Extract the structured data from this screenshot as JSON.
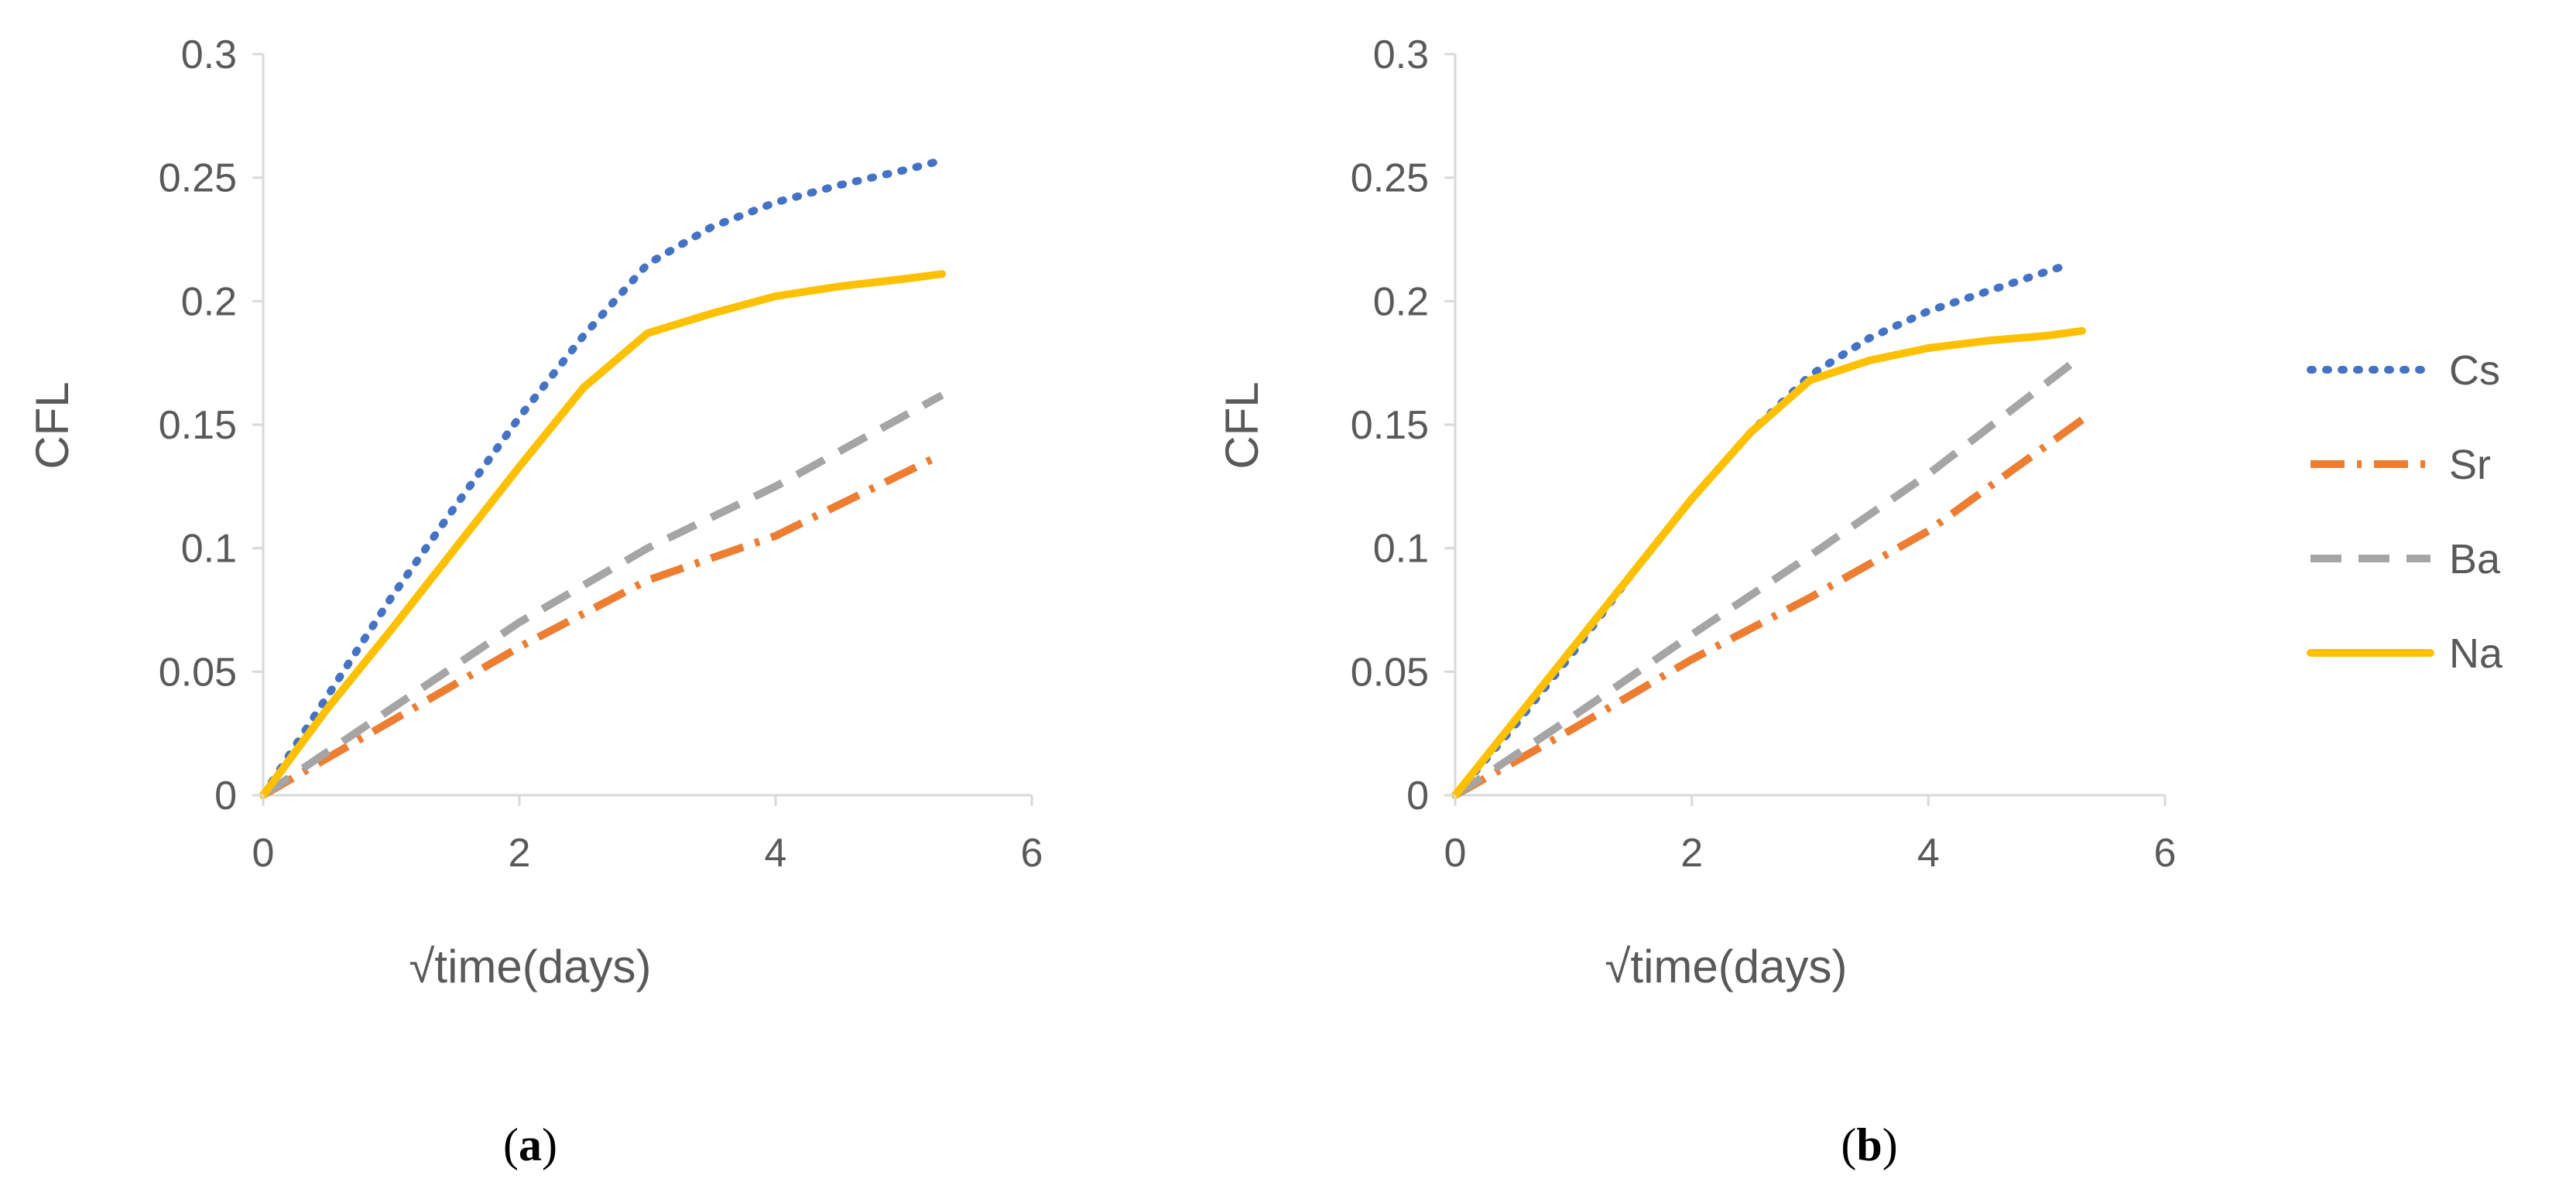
{
  "chart_data": [
    {
      "type": "line",
      "panel_label": "a",
      "xlabel": "√time(days)",
      "ylabel": "CFL",
      "xlim": [
        0,
        6
      ],
      "ylim": [
        0,
        0.3
      ],
      "xticks": [
        "0",
        "2",
        "4",
        "6"
      ],
      "yticks": [
        "0",
        "0.05",
        "0.1",
        "0.15",
        "0.2",
        "0.25",
        "0.3"
      ],
      "grid": false,
      "legend": "right",
      "series": [
        {
          "name": "Cs",
          "x": [
            0,
            0.5,
            1,
            1.5,
            2,
            2.5,
            3,
            3.5,
            4,
            4.5,
            5,
            5.3
          ],
          "y": [
            0,
            0.04,
            0.08,
            0.117,
            0.153,
            0.186,
            0.215,
            0.23,
            0.24,
            0.247,
            0.253,
            0.257
          ]
        },
        {
          "name": "Sr",
          "x": [
            0,
            1,
            2,
            3,
            4,
            5.3
          ],
          "y": [
            0,
            0.03,
            0.06,
            0.087,
            0.105,
            0.138
          ]
        },
        {
          "name": "Ba",
          "x": [
            0,
            1,
            2,
            3,
            4,
            5.3
          ],
          "y": [
            0,
            0.035,
            0.07,
            0.1,
            0.125,
            0.162
          ]
        },
        {
          "name": "Na",
          "x": [
            0,
            0.5,
            1,
            1.5,
            2,
            2.5,
            3,
            3.5,
            4,
            4.5,
            5,
            5.3
          ],
          "y": [
            0,
            0.035,
            0.067,
            0.1,
            0.133,
            0.165,
            0.187,
            0.195,
            0.202,
            0.206,
            0.209,
            0.211
          ]
        }
      ]
    },
    {
      "type": "line",
      "panel_label": "b",
      "xlabel": "√time(days)",
      "ylabel": "CFL",
      "xlim": [
        0,
        6
      ],
      "ylim": [
        0,
        0.3
      ],
      "xticks": [
        "0",
        "2",
        "4",
        "6"
      ],
      "yticks": [
        "0",
        "0.05",
        "0.1",
        "0.15",
        "0.2",
        "0.25",
        "0.3"
      ],
      "grid": false,
      "legend": "right",
      "series": [
        {
          "name": "Cs",
          "x": [
            0,
            0.5,
            1,
            1.5,
            2,
            2.5,
            3,
            3.5,
            4,
            4.5,
            5,
            5.2
          ],
          "y": [
            0,
            0.028,
            0.058,
            0.09,
            0.12,
            0.147,
            0.17,
            0.185,
            0.196,
            0.204,
            0.212,
            0.215
          ]
        },
        {
          "name": "Sr",
          "x": [
            0,
            1,
            2,
            3,
            4,
            5.3
          ],
          "y": [
            0,
            0.027,
            0.055,
            0.08,
            0.107,
            0.152
          ]
        },
        {
          "name": "Ba",
          "x": [
            0,
            1,
            2,
            3,
            4,
            5.3
          ],
          "y": [
            0,
            0.032,
            0.065,
            0.097,
            0.13,
            0.178
          ]
        },
        {
          "name": "Na",
          "x": [
            0,
            0.5,
            1,
            1.5,
            2,
            2.5,
            3,
            3.5,
            4,
            4.5,
            5,
            5.3
          ],
          "y": [
            0,
            0.03,
            0.06,
            0.09,
            0.12,
            0.147,
            0.168,
            0.176,
            0.181,
            0.184,
            0.186,
            0.188
          ]
        }
      ]
    }
  ],
  "legend": {
    "entries": [
      {
        "name": "Cs",
        "color": "#4472C4",
        "style": "dotted"
      },
      {
        "name": "Sr",
        "color": "#ED7D31",
        "style": "dash-dot"
      },
      {
        "name": "Ba",
        "color": "#A5A5A5",
        "style": "dashed"
      },
      {
        "name": "Na",
        "color": "#FFC000",
        "style": "solid"
      }
    ]
  }
}
